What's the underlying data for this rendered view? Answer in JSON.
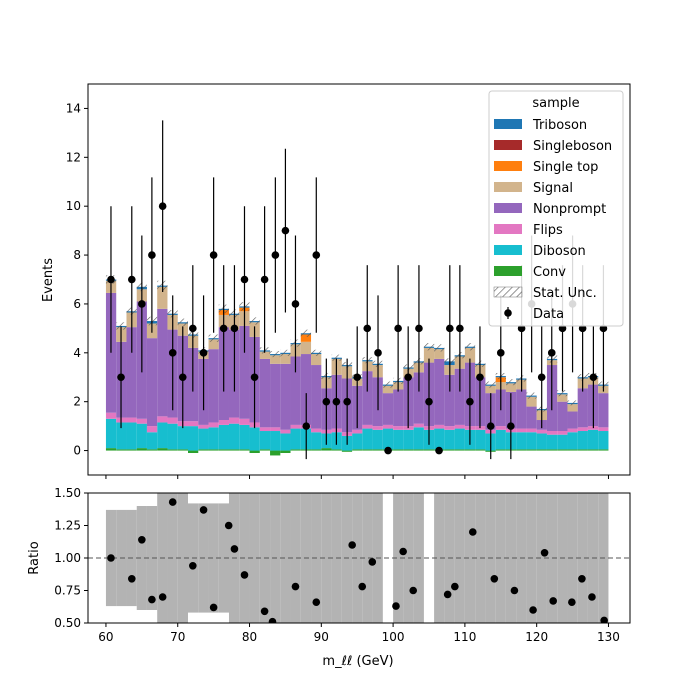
{
  "colors": {
    "Triboson": "#1f77b4",
    "Singleboson": "#a62a2a",
    "Single top": "#ff7f0e",
    "Signal": "#d2b48c",
    "Nonprompt": "#9467bd",
    "Flips": "#e377c2",
    "Diboson": "#17becf",
    "Conv": "#2ca02c",
    "uncertainty": "#b3b3b3",
    "data": "#000000"
  },
  "chart_data": [
    {
      "type": "bar",
      "subtype": "stacked-histogram",
      "ylabel": "Events",
      "xlim": [
        57.5,
        133
      ],
      "ylim": [
        -1,
        15
      ],
      "yticks": [
        0,
        2,
        4,
        6,
        8,
        10,
        12,
        14
      ],
      "legend": {
        "title": "sample",
        "position": "top-right",
        "entries": [
          "Triboson",
          "Singleboson",
          "Single top",
          "Signal",
          "Nonprompt",
          "Flips",
          "Diboson",
          "Conv",
          "Stat. Unc.",
          "Data"
        ]
      },
      "bin_edges": [
        60,
        61.43,
        62.86,
        64.29,
        65.71,
        67.14,
        68.57,
        70,
        71.43,
        72.86,
        74.29,
        75.71,
        77.14,
        78.57,
        80,
        81.43,
        82.86,
        84.29,
        85.71,
        87.14,
        88.57,
        90,
        91.43,
        92.86,
        94.29,
        95.71,
        97.14,
        98.57,
        100,
        101.43,
        102.86,
        104.29,
        105.71,
        107.14,
        108.57,
        110,
        111.43,
        112.86,
        114.29,
        115.71,
        117.14,
        118.57,
        120,
        121.43,
        122.86,
        124.29,
        125.71,
        127.14,
        128.57,
        130
      ],
      "series": [
        {
          "name": "Conv",
          "values": [
            0.1,
            0.05,
            0.05,
            0.1,
            0.05,
            0.1,
            0.05,
            0.05,
            -0.1,
            0.05,
            0.05,
            0.05,
            0.05,
            0.05,
            -0.1,
            0.05,
            -0.2,
            -0.1,
            0.05,
            0.05,
            0.05,
            0.1,
            0.05,
            -0.05,
            0.05,
            0.05,
            0.05,
            0.05,
            0.05,
            0.05,
            0.05,
            0.05,
            0.05,
            0.05,
            0.05,
            0.05,
            0.05,
            -0.05,
            0.05,
            0.05,
            0.05,
            0.05,
            0.05,
            0.05,
            0.05,
            0.05,
            0.05,
            0.05,
            0.05
          ]
        },
        {
          "name": "Diboson",
          "values": [
            1.2,
            1.1,
            1.1,
            1.0,
            0.7,
            1.05,
            1.05,
            0.95,
            1.0,
            0.85,
            0.9,
            1.0,
            1.05,
            1.0,
            0.95,
            0.75,
            0.8,
            0.7,
            0.85,
            0.85,
            0.7,
            0.6,
            0.7,
            0.6,
            0.65,
            0.85,
            0.8,
            0.85,
            0.8,
            0.8,
            0.9,
            0.8,
            0.85,
            0.8,
            0.85,
            0.8,
            0.8,
            0.7,
            0.8,
            0.7,
            0.7,
            0.7,
            0.65,
            0.6,
            0.6,
            0.7,
            0.75,
            0.8,
            0.75
          ]
        },
        {
          "name": "Flips",
          "values": [
            0.25,
            0.2,
            0.2,
            0.2,
            0.25,
            0.25,
            0.25,
            0.2,
            0.2,
            0.15,
            0.2,
            0.2,
            0.25,
            0.25,
            0.2,
            0.15,
            0.15,
            0.15,
            0.15,
            0.15,
            0.15,
            0.15,
            0.15,
            0.15,
            0.15,
            0.15,
            0.15,
            0.15,
            0.15,
            0.15,
            0.15,
            0.15,
            0.15,
            0.15,
            0.15,
            0.15,
            0.15,
            0.15,
            0.15,
            0.15,
            0.15,
            0.15,
            0.15,
            0.15,
            0.15,
            0.15,
            0.15,
            0.15,
            0.15
          ]
        },
        {
          "name": "Nonprompt",
          "values": [
            4.9,
            3.1,
            3.7,
            4.8,
            3.6,
            4.4,
            3.6,
            3.5,
            3.0,
            2.7,
            3.0,
            3.8,
            3.6,
            3.8,
            3.5,
            2.8,
            2.6,
            2.7,
            2.8,
            2.9,
            2.6,
            1.7,
            2.2,
            2.2,
            1.8,
            2.2,
            2.0,
            1.3,
            1.5,
            2.0,
            2.1,
            2.6,
            2.7,
            2.1,
            2.3,
            2.6,
            2.0,
            1.5,
            1.5,
            1.5,
            1.6,
            0.9,
            0.4,
            2.7,
            1.2,
            0.7,
            1.6,
            1.7,
            1.4
          ]
        },
        {
          "name": "Signal",
          "values": [
            0.5,
            0.6,
            0.6,
            0.5,
            0.6,
            0.9,
            0.6,
            0.5,
            0.5,
            0.3,
            0.4,
            0.5,
            0.6,
            0.6,
            0.6,
            0.3,
            0.35,
            0.4,
            0.5,
            0.5,
            0.45,
            0.45,
            0.65,
            0.5,
            0.3,
            0.4,
            0.5,
            0.3,
            0.3,
            0.35,
            0.4,
            0.6,
            0.4,
            0.4,
            0.5,
            0.6,
            0.5,
            0.3,
            0.3,
            0.35,
            0.4,
            0.4,
            0.4,
            0.2,
            0.3,
            0.3,
            0.4,
            0.3,
            0.3
          ]
        },
        {
          "name": "Single top",
          "values": [
            0,
            0,
            0,
            0,
            0,
            0,
            0,
            0,
            0,
            0,
            0,
            0.2,
            0,
            0.15,
            0,
            0,
            0,
            0,
            0,
            0.3,
            0,
            0,
            0,
            0,
            0,
            0,
            0,
            0,
            0,
            0,
            0,
            0,
            0,
            0,
            0,
            0,
            0,
            0,
            0.2,
            0,
            0,
            0,
            0,
            0,
            0,
            0,
            0,
            0,
            0
          ]
        },
        {
          "name": "Singleboson",
          "values": [
            0,
            0,
            0,
            0,
            0,
            0,
            0,
            0,
            0,
            0,
            0,
            0,
            0,
            0,
            0,
            0,
            0,
            0,
            0,
            0,
            0,
            0,
            0,
            0,
            0,
            0,
            0,
            0,
            0,
            0,
            0,
            0,
            0,
            0,
            0,
            0,
            0,
            0,
            0,
            0,
            0,
            0,
            0,
            0,
            0,
            0,
            0,
            0,
            0
          ]
        },
        {
          "name": "Triboson",
          "values": [
            0.05,
            0.05,
            0.05,
            0.1,
            0.1,
            0.05,
            0.05,
            0.05,
            0.05,
            0.05,
            0.05,
            0.05,
            0.05,
            0.05,
            0.05,
            0.05,
            0.05,
            0.05,
            0.05,
            0.05,
            0.05,
            0.05,
            0.05,
            0.05,
            0.05,
            0.05,
            0.05,
            0.05,
            0.05,
            0.05,
            0.05,
            0.05,
            0.05,
            0.15,
            0.05,
            0.05,
            0.05,
            0.05,
            0.05,
            0.05,
            0.05,
            0.05,
            0.05,
            0.05,
            0.05,
            0.05,
            0.05,
            0.05,
            0.05
          ]
        }
      ],
      "stat_unc": [
        0.35,
        0.3,
        0.3,
        0.35,
        0.35,
        0.4,
        0.3,
        0.3,
        0.3,
        0.25,
        0.3,
        0.35,
        0.35,
        0.35,
        0.3,
        0.25,
        0.25,
        0.25,
        0.3,
        0.3,
        0.25,
        0.25,
        0.25,
        0.25,
        0.25,
        0.25,
        0.25,
        0.25,
        0.25,
        0.25,
        0.25,
        0.3,
        0.3,
        0.25,
        0.25,
        0.3,
        0.25,
        0.25,
        0.25,
        0.25,
        0.25,
        0.25,
        0.2,
        0.3,
        0.25,
        0.2,
        0.25,
        0.25,
        0.25
      ],
      "data": {
        "name": "Data",
        "x": [
          60.7,
          62.1,
          63.6,
          65.0,
          66.4,
          67.9,
          69.3,
          70.7,
          72.1,
          73.6,
          75.0,
          76.4,
          77.9,
          79.3,
          80.7,
          82.1,
          83.6,
          85.0,
          86.4,
          87.9,
          89.3,
          90.7,
          92.1,
          93.6,
          95.0,
          96.4,
          97.9,
          99.3,
          100.7,
          102.1,
          103.6,
          105.0,
          106.4,
          107.9,
          109.3,
          110.7,
          112.1,
          113.6,
          115.0,
          116.4,
          117.9,
          119.3,
          120.7,
          122.1,
          123.6,
          125.0,
          126.4,
          127.9,
          129.3
        ],
        "y": [
          7,
          3,
          7,
          6,
          8,
          10,
          4,
          3,
          5,
          4,
          8,
          5,
          5,
          7,
          3,
          7,
          8,
          9,
          6,
          1,
          8,
          2,
          2,
          2,
          3,
          5,
          4,
          0,
          5,
          3,
          5,
          2,
          0,
          5,
          5,
          2,
          3,
          1,
          4,
          1,
          5,
          6,
          3,
          4,
          5,
          6,
          5,
          3,
          5
        ]
      }
    },
    {
      "type": "scatter",
      "subtype": "ratio",
      "xlabel": "m_ℓℓ (GeV)",
      "ylabel": "Ratio",
      "xlim": [
        57.5,
        133
      ],
      "ylim": [
        0.5,
        1.5
      ],
      "yticks": [
        0.5,
        0.75,
        1.0,
        1.25,
        1.5
      ],
      "xticks": [
        60,
        70,
        80,
        90,
        100,
        110,
        120,
        130
      ],
      "reference_line": 1.0,
      "x": [
        60.7,
        63.6,
        65.0,
        66.4,
        67.9,
        69.3,
        72.1,
        73.6,
        75.0,
        77.1,
        77.9,
        79.3,
        82.1,
        83.2,
        86.4,
        89.3,
        94.3,
        95.7,
        97.1,
        100.4,
        101.4,
        102.8,
        107.6,
        108.6,
        111.1,
        114.1,
        116.9,
        119.5,
        121.1,
        122.3,
        124.9,
        126.3,
        127.7,
        129.4
      ],
      "y": [
        1.0,
        0.84,
        1.14,
        0.68,
        0.7,
        1.43,
        0.94,
        1.37,
        0.62,
        1.25,
        1.07,
        0.87,
        0.59,
        0.51,
        0.78,
        0.66,
        1.1,
        0.78,
        0.97,
        0.63,
        1.05,
        0.75,
        0.72,
        0.78,
        1.2,
        0.84,
        0.75,
        0.6,
        1.04,
        0.67,
        0.66,
        0.84,
        0.7,
        0.52
      ],
      "unc_band": [
        0.37,
        0.37,
        0.37,
        0.4,
        0.4,
        0.5,
        0.5,
        0.5,
        0.42,
        0.42,
        0.42,
        0.42,
        0.5,
        0.5,
        0.5,
        0.5,
        0.5,
        0.5,
        0.5,
        0.5,
        0.5,
        0.5,
        0.5,
        0.5,
        0.5,
        0.5,
        0.5,
        0.5,
        0.5,
        0.5,
        0.5,
        0.5,
        0.5,
        0.5,
        0.5,
        0.5,
        0.5,
        0.5,
        0.5,
        0.5,
        0.5,
        0.5,
        0.5,
        0.5,
        0.5,
        0.5,
        0.5,
        0.5,
        0.5
      ],
      "unc_band_gaps": [
        98.57,
        100,
        104.29,
        105.71
      ]
    }
  ]
}
